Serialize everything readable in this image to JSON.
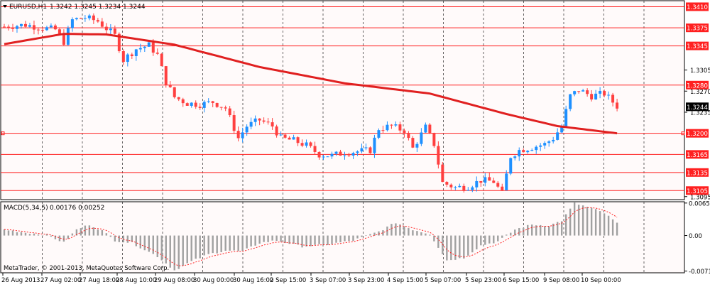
{
  "header": {
    "symbol_title": "EURUSD,H1",
    "ohlc": "1.3242 1.3245 1.3234 1.3244"
  },
  "macd": {
    "title": "MACD(5,34,5)",
    "values": "0.00176 0.00252"
  },
  "copyright": "MetaTrader, © 2001-2013, MetaQuotes Software Corp.",
  "colors": {
    "background": "#ffffff",
    "plot_bg": "#fffafa",
    "bull_candle": "#1e90ff",
    "bear_candle": "#ff4040",
    "level_line": "#ff2020",
    "moving_average": "#e02020",
    "macd_bar": "#a0a0a0",
    "macd_signal": "#ff2020",
    "grid": "#000000"
  },
  "chart_data": [
    {
      "type": "candlestick",
      "timeframe": "H1",
      "ylim": [
        1.309,
        1.342
      ],
      "y_ticks": [
        "1.3305",
        "1.3270",
        "1.3235",
        "1.3095"
      ],
      "current_price": "1.3244",
      "horizontal_levels": [
        "1.3410",
        "1.3375",
        "1.3345",
        "1.3280",
        "1.3200",
        "1.3165",
        "1.3135",
        "1.3105"
      ],
      "x_tick_labels": [
        "26 Aug 2013",
        "27 Aug 02:00",
        "27 Aug 18:00",
        "28 Aug 10:00",
        "29 Aug 08:00",
        "30 Aug 00:00",
        "30 Aug 16:00",
        "2 Sep 15:00",
        "3 Sep 07:00",
        "3 Sep 23:00",
        "4 Sep 15:00",
        "5 Sep 07:00",
        "5 Sep 23:00",
        "6 Sep 15:00",
        "9 Sep 08:00",
        "10 Sep 00:00"
      ],
      "price_path_anchors": [
        [
          0,
          1.3377
        ],
        [
          5,
          1.338
        ],
        [
          9,
          1.3375
        ],
        [
          12,
          1.3372
        ],
        [
          14,
          1.3352
        ],
        [
          16,
          1.3388
        ],
        [
          19,
          1.3392
        ],
        [
          22,
          1.3386
        ],
        [
          26,
          1.3362
        ],
        [
          28,
          1.3322
        ],
        [
          31,
          1.334
        ],
        [
          34,
          1.3346
        ],
        [
          36,
          1.333
        ],
        [
          38,
          1.3285
        ],
        [
          40,
          1.326
        ],
        [
          43,
          1.325
        ],
        [
          46,
          1.3248
        ],
        [
          49,
          1.3252
        ],
        [
          52,
          1.3242
        ],
        [
          55,
          1.3192
        ],
        [
          57,
          1.3212
        ],
        [
          60,
          1.3222
        ],
        [
          63,
          1.3212
        ],
        [
          65,
          1.3192
        ],
        [
          68,
          1.3188
        ],
        [
          71,
          1.318
        ],
        [
          74,
          1.3165
        ],
        [
          77,
          1.3163
        ],
        [
          80,
          1.3168
        ],
        [
          83,
          1.317
        ],
        [
          86,
          1.3172
        ],
        [
          88,
          1.3208
        ],
        [
          91,
          1.3212
        ],
        [
          94,
          1.3204
        ],
        [
          96,
          1.3175
        ],
        [
          99,
          1.321
        ],
        [
          101,
          1.3182
        ],
        [
          103,
          1.3118
        ],
        [
          106,
          1.311
        ],
        [
          109,
          1.3112
        ],
        [
          112,
          1.3122
        ],
        [
          115,
          1.312
        ],
        [
          117,
          1.31
        ],
        [
          119,
          1.3162
        ],
        [
          121,
          1.3172
        ],
        [
          124,
          1.3177
        ],
        [
          127,
          1.3182
        ],
        [
          129,
          1.3192
        ],
        [
          131,
          1.3212
        ],
        [
          133,
          1.3262
        ],
        [
          135,
          1.3272
        ],
        [
          138,
          1.3262
        ],
        [
          141,
          1.3266
        ],
        [
          144,
          1.3245
        ]
      ],
      "moving_average_anchors": [
        [
          0,
          1.3348
        ],
        [
          14,
          1.3365
        ],
        [
          24,
          1.3364
        ],
        [
          40,
          1.3347
        ],
        [
          60,
          1.331
        ],
        [
          80,
          1.3283
        ],
        [
          100,
          1.3266
        ],
        [
          118,
          1.3232
        ],
        [
          130,
          1.3212
        ],
        [
          144,
          1.32
        ]
      ]
    },
    {
      "type": "bar",
      "indicator": "MACD(5,34,5)",
      "ylim": [
        -0.0075,
        0.0068
      ],
      "y_ticks": [
        "0.00654",
        "0.00",
        "-0.00715"
      ],
      "histogram_anchors": [
        [
          0,
          0.0012
        ],
        [
          5,
          0.0006
        ],
        [
          10,
          0.0001
        ],
        [
          14,
          -0.0014
        ],
        [
          17,
          0.0012
        ],
        [
          20,
          0.0022
        ],
        [
          23,
          0.001
        ],
        [
          26,
          -0.001
        ],
        [
          30,
          -0.0015
        ],
        [
          36,
          -0.0042
        ],
        [
          40,
          -0.007
        ],
        [
          44,
          -0.0052
        ],
        [
          48,
          -0.0038
        ],
        [
          52,
          -0.003
        ],
        [
          56,
          -0.0032
        ],
        [
          60,
          -0.0015
        ],
        [
          64,
          -0.001
        ],
        [
          70,
          -0.0022
        ],
        [
          76,
          -0.0018
        ],
        [
          82,
          -0.001
        ],
        [
          88,
          0.0008
        ],
        [
          92,
          0.0026
        ],
        [
          96,
          0.0012
        ],
        [
          100,
          0.0003
        ],
        [
          104,
          -0.005
        ],
        [
          108,
          -0.0045
        ],
        [
          112,
          -0.002
        ],
        [
          116,
          -0.0012
        ],
        [
          120,
          0.0012
        ],
        [
          124,
          0.0022
        ],
        [
          128,
          0.002
        ],
        [
          131,
          0.003
        ],
        [
          134,
          0.0065
        ],
        [
          138,
          0.0055
        ],
        [
          141,
          0.0045
        ],
        [
          144,
          0.0025
        ]
      ]
    }
  ]
}
